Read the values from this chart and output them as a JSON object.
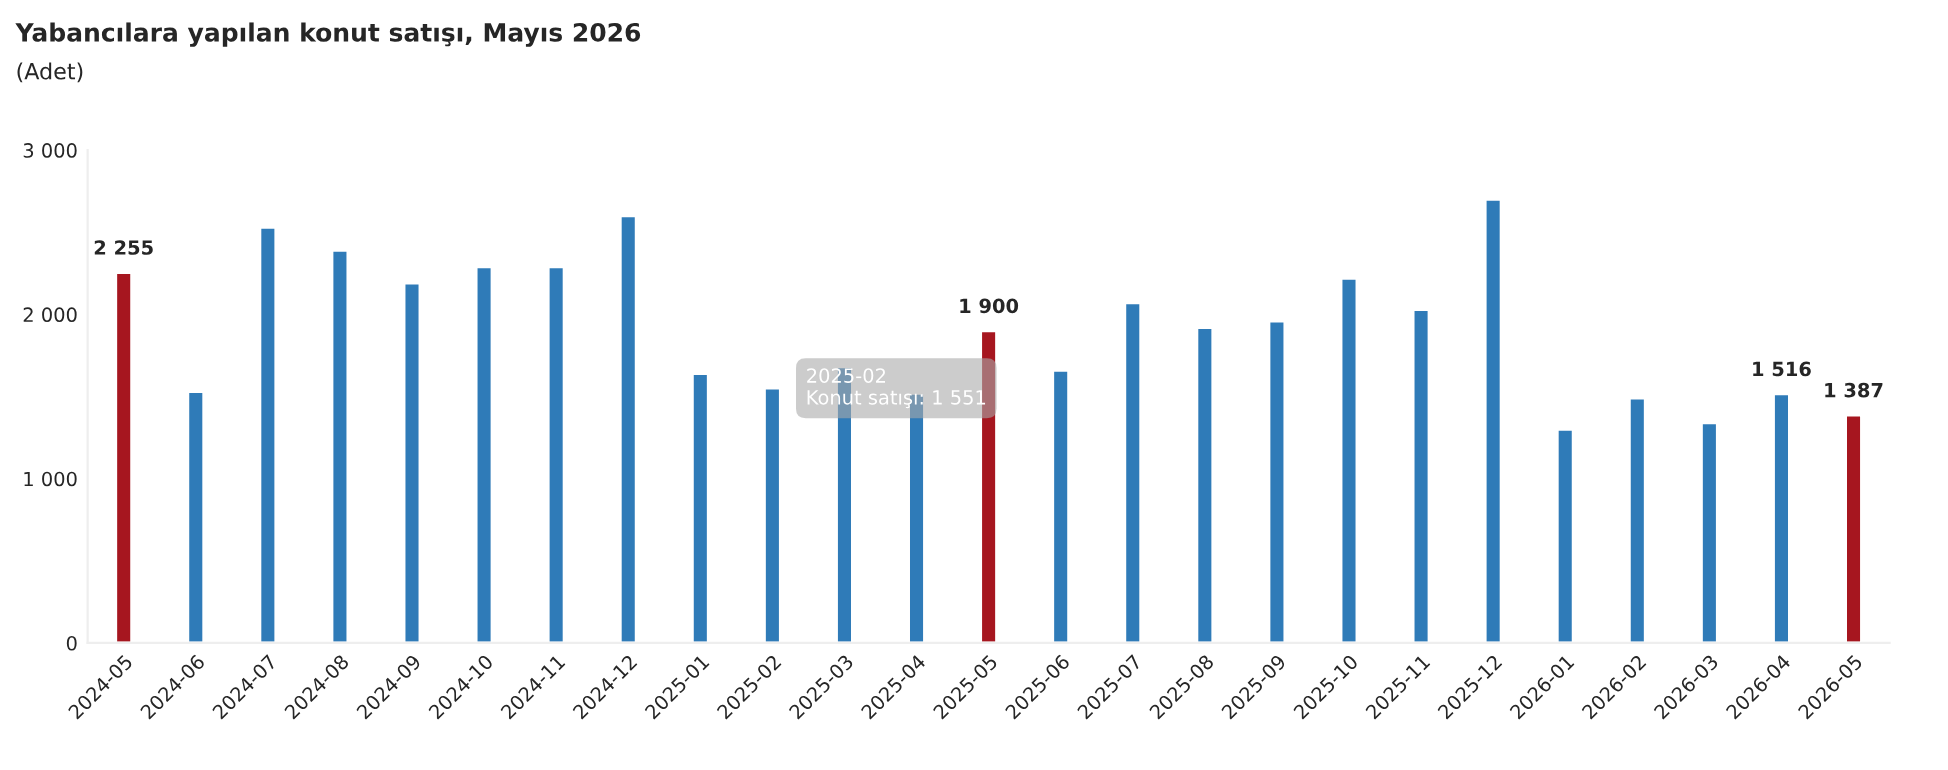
{
  "chart_data": {
    "type": "bar",
    "title": "Yabancılara yapılan konut satışı, Mayıs 2026",
    "subtitle": "(Adet)",
    "categories": [
      "2024-05",
      "2024-06",
      "2024-07",
      "2024-08",
      "2024-09",
      "2024-10",
      "2024-11",
      "2024-12",
      "2025-01",
      "2025-02",
      "2025-03",
      "2025-04",
      "2025-05",
      "2025-06",
      "2025-07",
      "2025-08",
      "2025-09",
      "2025-10",
      "2025-11",
      "2025-12",
      "2026-01",
      "2026-02",
      "2026-03",
      "2026-04",
      "2026-05"
    ],
    "values": [
      2255,
      1530,
      2530,
      2390,
      2190,
      2290,
      2290,
      2600,
      1640,
      1551,
      1680,
      1520,
      1900,
      1660,
      2070,
      1920,
      1960,
      2220,
      2030,
      2700,
      1300,
      1490,
      1340,
      1516,
      1387
    ],
    "colors": [
      "#a6161f",
      "#2f7bb8",
      "#2f7bb8",
      "#2f7bb8",
      "#2f7bb8",
      "#2f7bb8",
      "#2f7bb8",
      "#2f7bb8",
      "#2f7bb8",
      "#2f7bb8",
      "#2f7bb8",
      "#2f7bb8",
      "#a6161f",
      "#2f7bb8",
      "#2f7bb8",
      "#2f7bb8",
      "#2f7bb8",
      "#2f7bb8",
      "#2f7bb8",
      "#2f7bb8",
      "#2f7bb8",
      "#2f7bb8",
      "#2f7bb8",
      "#2f7bb8",
      "#a6161f"
    ],
    "value_labels": [
      "2 255",
      null,
      null,
      null,
      null,
      null,
      null,
      null,
      null,
      null,
      null,
      null,
      "1 900",
      null,
      null,
      null,
      null,
      null,
      null,
      null,
      null,
      null,
      null,
      "1 516",
      "1 387"
    ],
    "annotations": [
      {
        "text": "2025-02\nKonut satışı: 1 551",
        "x": "2025-02",
        "y": 1551
      }
    ],
    "ylim": [
      0,
      3000
    ],
    "yticks": [
      {
        "value": 0,
        "label": "0"
      },
      {
        "value": 1000,
        "label": "1 000"
      },
      {
        "value": 2000,
        "label": "2 000"
      },
      {
        "value": 3000,
        "label": "3 000"
      }
    ],
    "grid": false,
    "legend": false
  }
}
